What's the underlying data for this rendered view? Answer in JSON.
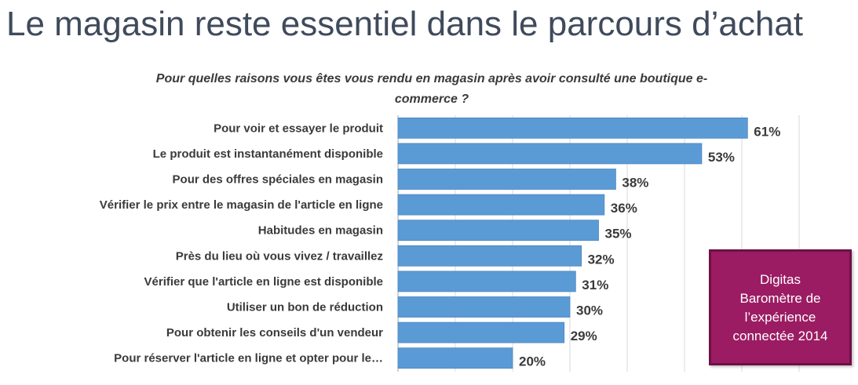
{
  "slide": {
    "title": "Le magasin reste essentiel dans le parcours d’achat",
    "question": "Pour quelles raisons vous êtes vous rendu en magasin après avoir consulté une boutique e-commerce ?"
  },
  "source_box": {
    "lines": [
      "Digitas",
      "Baromètre de",
      "l’expérience",
      "connectée 2014"
    ],
    "background": "#9b1c63"
  },
  "chart_data": {
    "type": "bar",
    "orientation": "horizontal",
    "categories": [
      "Pour voir et essayer le produit",
      "Le produit est instantanément disponible",
      "Pour des offres spéciales en magasin",
      "Vérifier le prix entre le magasin de l'article en ligne",
      "Habitudes en magasin",
      "Près du lieu où vous vivez / travaillez",
      "Vérifier que l'article en ligne est disponible",
      "Utiliser un bon de réduction",
      "Pour obtenir les conseils d'un vendeur",
      "Pour réserver l'article en ligne et opter pour le…"
    ],
    "values": [
      61,
      53,
      38,
      36,
      35,
      32,
      31,
      30,
      29,
      20
    ],
    "value_labels": [
      "61%",
      "53%",
      "38%",
      "36%",
      "35%",
      "32%",
      "31%",
      "30%",
      "29%",
      "20%"
    ],
    "unit": "%",
    "xlim": [
      0,
      70
    ],
    "grid": "vertical",
    "bar_color": "#5b9bd5",
    "title": "Pour quelles raisons vous êtes vous rendu en magasin après avoir consulté une boutique e-commerce ?"
  }
}
